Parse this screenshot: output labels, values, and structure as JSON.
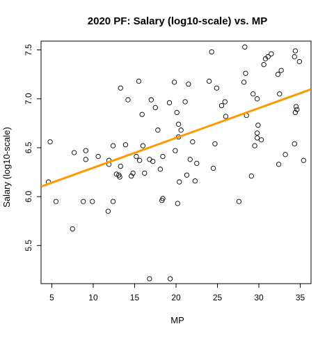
{
  "chart_data": {
    "type": "scatter",
    "title": "2020 PF: Salary (log10-scale) vs. MP",
    "xlabel": "MP",
    "ylabel": "Salary (log10-scale)",
    "xlim": [
      3.7,
      36.3
    ],
    "ylim": [
      5.11,
      7.59
    ],
    "x_ticks": [
      5,
      10,
      15,
      20,
      25,
      30,
      35
    ],
    "x_tick_labels": [
      "5",
      "10",
      "15",
      "20",
      "25",
      "30",
      "35"
    ],
    "y_ticks": [
      5.5,
      6.0,
      6.5,
      7.0,
      7.5
    ],
    "y_tick_labels": [
      "5.5",
      "6.0",
      "6.5",
      "7.0",
      "7.5"
    ],
    "grid": false,
    "legend": "none",
    "colors": {
      "points": "#000000",
      "fit_line": "#ff9900",
      "axes": "#000000"
    },
    "fit_line": {
      "intercept": 5.99,
      "slope": 0.0305
    },
    "points": [
      [
        4.6,
        6.15
      ],
      [
        4.8,
        6.56
      ],
      [
        5.5,
        5.95
      ],
      [
        7.5,
        5.67
      ],
      [
        7.7,
        6.45
      ],
      [
        8.8,
        5.95
      ],
      [
        9.1,
        6.38
      ],
      [
        9.1,
        6.47
      ],
      [
        9.9,
        5.95
      ],
      [
        10.6,
        6.41
      ],
      [
        11.8,
        5.85
      ],
      [
        11.9,
        6.33
      ],
      [
        11.9,
        6.37
      ],
      [
        12.4,
        5.95
      ],
      [
        12.4,
        6.52
      ],
      [
        12.8,
        6.23
      ],
      [
        13.1,
        6.22
      ],
      [
        13.2,
        6.2
      ],
      [
        13.3,
        7.11
      ],
      [
        13.3,
        6.31
      ],
      [
        13.9,
        6.53
      ],
      [
        14.2,
        6.99
      ],
      [
        14.6,
        6.21
      ],
      [
        14.8,
        6.24
      ],
      [
        15.2,
        6.41
      ],
      [
        15.5,
        7.18
      ],
      [
        15.6,
        6.37
      ],
      [
        15.9,
        6.84
      ],
      [
        16.0,
        6.52
      ],
      [
        16.2,
        6.24
      ],
      [
        16.8,
        6.38
      ],
      [
        17.0,
        6.99
      ],
      [
        17.2,
        6.36
      ],
      [
        16.8,
        5.16
      ],
      [
        17.5,
        6.91
      ],
      [
        17.8,
        6.68
      ],
      [
        18.1,
        6.28
      ],
      [
        18.3,
        5.96
      ],
      [
        18.4,
        5.98
      ],
      [
        18.4,
        6.41
      ],
      [
        19.2,
        6.96
      ],
      [
        19.3,
        5.16
      ],
      [
        19.8,
        7.17
      ],
      [
        19.9,
        6.47
      ],
      [
        20.1,
        6.86
      ],
      [
        20.2,
        5.93
      ],
      [
        20.3,
        6.74
      ],
      [
        20.3,
        6.61
      ],
      [
        20.4,
        6.15
      ],
      [
        20.6,
        6.68
      ],
      [
        21.1,
        6.97
      ],
      [
        21.3,
        6.22
      ],
      [
        21.5,
        7.15
      ],
      [
        21.7,
        6.38
      ],
      [
        22.0,
        6.56
      ],
      [
        22.3,
        6.16
      ],
      [
        22.5,
        6.34
      ],
      [
        24.0,
        7.18
      ],
      [
        24.3,
        7.48
      ],
      [
        24.5,
        6.29
      ],
      [
        24.7,
        6.54
      ],
      [
        24.9,
        7.11
      ],
      [
        25.5,
        6.93
      ],
      [
        25.9,
        6.97
      ],
      [
        26.0,
        6.82
      ],
      [
        27.6,
        5.95
      ],
      [
        28.2,
        7.17
      ],
      [
        28.3,
        7.53
      ],
      [
        28.4,
        7.26
      ],
      [
        28.5,
        6.83
      ],
      [
        29.1,
        6.21
      ],
      [
        29.3,
        7.05
      ],
      [
        29.5,
        6.52
      ],
      [
        29.8,
        7.0
      ],
      [
        29.8,
        6.65
      ],
      [
        29.8,
        6.6
      ],
      [
        29.9,
        6.73
      ],
      [
        30.3,
        6.58
      ],
      [
        30.6,
        7.35
      ],
      [
        30.8,
        7.41
      ],
      [
        31.1,
        7.43
      ],
      [
        31.5,
        7.46
      ],
      [
        32.3,
        7.25
      ],
      [
        32.4,
        6.33
      ],
      [
        32.5,
        7.05
      ],
      [
        32.7,
        7.29
      ],
      [
        33.2,
        6.43
      ],
      [
        34.3,
        7.43
      ],
      [
        34.3,
        6.54
      ],
      [
        34.4,
        6.86
      ],
      [
        34.4,
        7.49
      ],
      [
        34.5,
        6.92
      ],
      [
        34.6,
        6.89
      ],
      [
        34.9,
        7.38
      ],
      [
        35.4,
        6.37
      ]
    ]
  }
}
